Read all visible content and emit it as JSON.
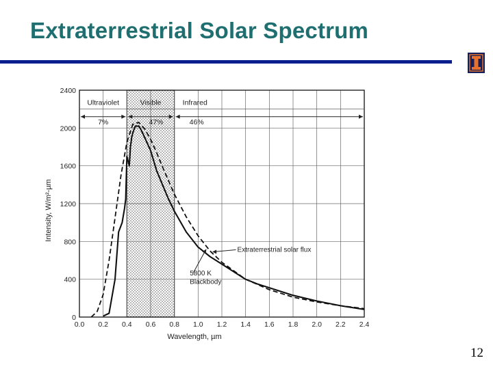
{
  "slide": {
    "title": "Extraterrestrial Solar Spectrum",
    "page_number": "12"
  },
  "colors": {
    "title": "#1f6f70",
    "rule": "#0a1f8f",
    "logo_bg": "#13205c",
    "logo_mark": "#e8702a"
  },
  "logo": {
    "icon": "block-i-logo-icon"
  },
  "chart_data": {
    "type": "line",
    "title": "",
    "xlabel": "Wavelength, µm",
    "ylabel": "Intensity, W/m²-µm",
    "xlim": [
      0.0,
      2.4
    ],
    "ylim": [
      0,
      2400
    ],
    "x_ticks": [
      "0.0",
      "0.2",
      "0.4",
      "0.6",
      "0.8",
      "1.0",
      "1.2",
      "1.4",
      "1.6",
      "1.8",
      "2.0",
      "2.2",
      "2.4"
    ],
    "y_ticks": [
      "0",
      "400",
      "800",
      "1200",
      "1600",
      "2000",
      "2400"
    ],
    "grid": true,
    "regions": [
      {
        "name": "Ultraviolet",
        "percent": "7%",
        "x_range": [
          0.0,
          0.4
        ]
      },
      {
        "name": "Visible",
        "percent": "47%",
        "x_range": [
          0.4,
          0.8
        ]
      },
      {
        "name": "Infrared",
        "percent": "46%",
        "x_range": [
          0.8,
          2.4
        ]
      }
    ],
    "series": [
      {
        "name": "Extraterrestrial solar flux",
        "style": "solid",
        "x": [
          0.2,
          0.25,
          0.3,
          0.33,
          0.36,
          0.38,
          0.39,
          0.4,
          0.41,
          0.42,
          0.43,
          0.44,
          0.45,
          0.47,
          0.5,
          0.52,
          0.55,
          0.6,
          0.65,
          0.7,
          0.75,
          0.8,
          0.9,
          1.0,
          1.1,
          1.2,
          1.3,
          1.4,
          1.5,
          1.6,
          1.8,
          2.0,
          2.2,
          2.4
        ],
        "y": [
          10,
          40,
          400,
          900,
          1000,
          1150,
          1250,
          1700,
          1650,
          1600,
          1800,
          1900,
          1950,
          2020,
          2020,
          1980,
          1900,
          1760,
          1550,
          1400,
          1250,
          1120,
          900,
          740,
          640,
          560,
          480,
          400,
          350,
          310,
          230,
          170,
          120,
          80
        ]
      },
      {
        "name": "5800 K Blackbody",
        "style": "dashed",
        "x": [
          0.1,
          0.15,
          0.2,
          0.25,
          0.3,
          0.35,
          0.4,
          0.45,
          0.5,
          0.55,
          0.6,
          0.65,
          0.7,
          0.8,
          0.9,
          1.0,
          1.1,
          1.2,
          1.4,
          1.6,
          1.8,
          2.0,
          2.2,
          2.4
        ],
        "y": [
          0,
          60,
          240,
          600,
          1050,
          1500,
          1850,
          2040,
          2060,
          1990,
          1880,
          1740,
          1590,
          1300,
          1060,
          860,
          700,
          580,
          400,
          290,
          210,
          160,
          120,
          90
        ]
      }
    ],
    "annotations": [
      {
        "text": "Extraterrestrial solar flux",
        "x": 1.33,
        "y": 690
      },
      {
        "text": "5800 K",
        "x": 0.93,
        "y": 440
      },
      {
        "text": "Blackbody",
        "x": 0.93,
        "y": 350
      }
    ]
  }
}
